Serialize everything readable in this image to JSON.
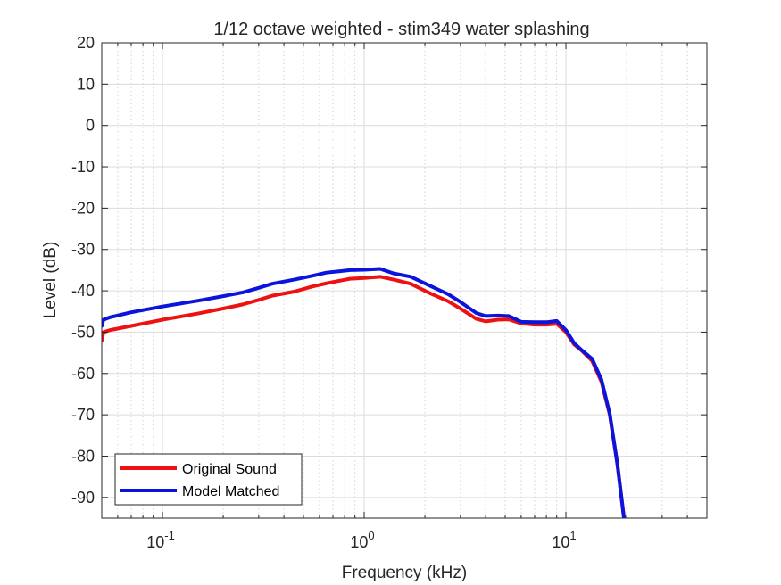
{
  "chart_data": {
    "type": "line",
    "title": "1/12 octave weighted - stim349 water splashing",
    "xlabel": "Frequency (kHz)",
    "ylabel": "Level (dB)",
    "xscale": "log",
    "xlim": [
      0.05,
      50
    ],
    "ylim": [
      -95,
      20
    ],
    "grid": true,
    "minor_grid": true,
    "legend_location": "bottom-left",
    "x_ticks": [
      {
        "value": 0.1,
        "base": "10",
        "exp": "-1"
      },
      {
        "value": 1,
        "base": "10",
        "exp": "0"
      },
      {
        "value": 10,
        "base": "10",
        "exp": "1"
      }
    ],
    "y_ticks": [
      20,
      10,
      0,
      -10,
      -20,
      -30,
      -40,
      -50,
      -60,
      -70,
      -80,
      -90
    ],
    "series": [
      {
        "name": "Original Sound",
        "color": "#ee1111",
        "x": [
          0.05,
          0.051,
          0.055,
          0.07,
          0.1,
          0.15,
          0.2,
          0.25,
          0.3,
          0.35,
          0.45,
          0.55,
          0.65,
          0.75,
          0.85,
          1.0,
          1.2,
          1.4,
          1.7,
          2.1,
          2.6,
          3.0,
          3.6,
          4.0,
          4.6,
          5.2,
          6.0,
          7.0,
          8.0,
          9.0,
          10.0,
          11.0,
          12.0,
          13.5,
          15.0,
          16.5,
          18.0,
          19.4
        ],
        "y": [
          -52,
          -50,
          -49.5,
          -48.5,
          -47,
          -45.5,
          -44.3,
          -43.3,
          -42.2,
          -41.2,
          -40.2,
          -39,
          -38.2,
          -37.6,
          -37.1,
          -36.9,
          -36.6,
          -37.3,
          -38.3,
          -40.5,
          -42.5,
          -44.3,
          -46.8,
          -47.4,
          -47,
          -46.9,
          -47.9,
          -48.2,
          -48.2,
          -48,
          -50,
          -53,
          -54.5,
          -57,
          -62,
          -70,
          -82,
          -95
        ]
      },
      {
        "name": "Model Matched",
        "color": "#0a14dd",
        "x": [
          0.05,
          0.051,
          0.055,
          0.07,
          0.1,
          0.15,
          0.2,
          0.25,
          0.3,
          0.35,
          0.45,
          0.55,
          0.65,
          0.75,
          0.85,
          1.0,
          1.2,
          1.4,
          1.7,
          2.1,
          2.6,
          3.0,
          3.6,
          4.0,
          4.6,
          5.2,
          6.0,
          7.0,
          8.0,
          9.0,
          10.0,
          11.0,
          12.0,
          13.5,
          15.0,
          16.5,
          18.0,
          19.4
        ],
        "y": [
          -48.5,
          -47,
          -46.4,
          -45.2,
          -43.8,
          -42.4,
          -41.3,
          -40.4,
          -39.3,
          -38.3,
          -37.3,
          -36.4,
          -35.6,
          -35.3,
          -35,
          -34.9,
          -34.7,
          -35.8,
          -36.6,
          -38.7,
          -40.8,
          -42.7,
          -45.4,
          -46.1,
          -46,
          -46.1,
          -47.5,
          -47.6,
          -47.6,
          -47.3,
          -49.5,
          -52.7,
          -54.4,
          -56.5,
          -61.5,
          -69.8,
          -82,
          -95
        ]
      }
    ]
  }
}
